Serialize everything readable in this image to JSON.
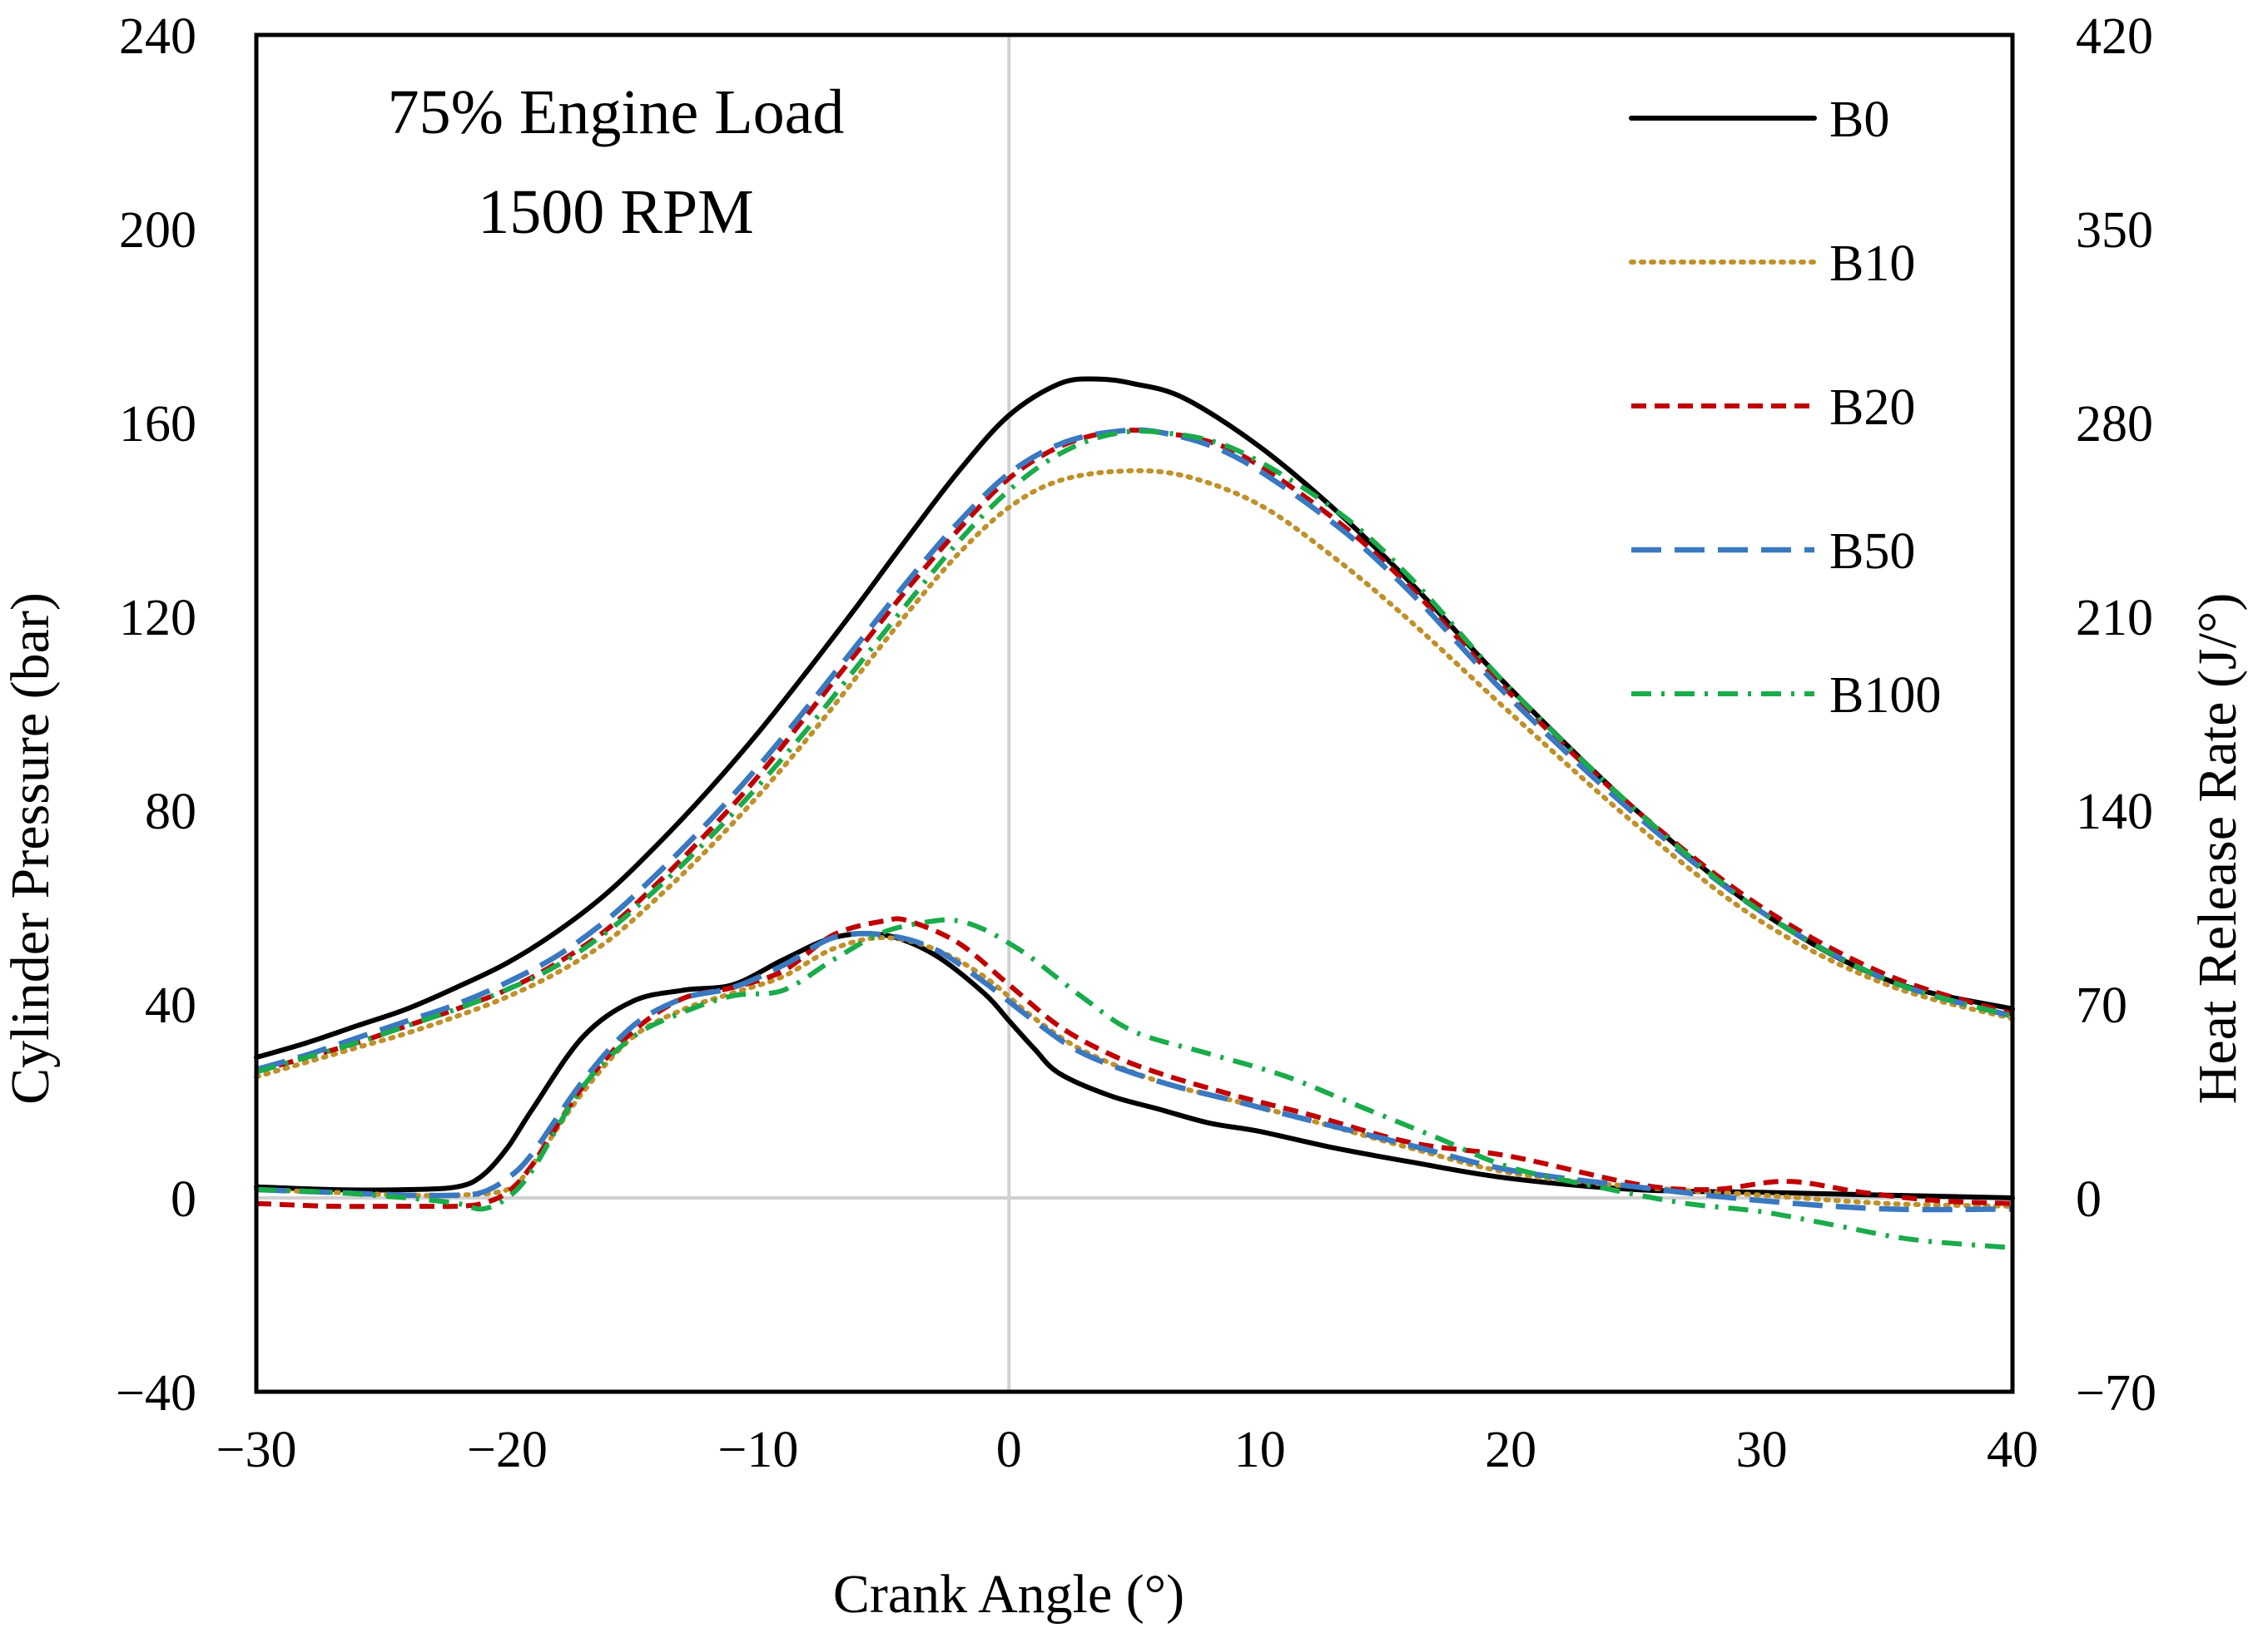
{
  "chart_data": {
    "type": "line",
    "title": "",
    "annotations": [
      "75% Engine Load",
      "1500 RPM"
    ],
    "xlabel": "Crank Angle (°)",
    "ylabel": "Cylinder Pressure (bar)",
    "y2label": "Heat Release Rate (J/°)",
    "xlim": [
      -30,
      40
    ],
    "ylim": [
      -40,
      240
    ],
    "y2lim": [
      -70,
      420
    ],
    "x_ticks": [
      -30,
      -20,
      -10,
      0,
      10,
      20,
      30,
      40
    ],
    "y_ticks": [
      -40,
      0,
      40,
      80,
      120,
      160,
      200,
      240
    ],
    "y2_ticks": [
      -70,
      0,
      70,
      140,
      210,
      280,
      350,
      420
    ],
    "x_tick_labels": [
      "−30",
      "−20",
      "−10",
      "0",
      "10",
      "20",
      "30",
      "40"
    ],
    "y_tick_labels": [
      "−40",
      "0",
      "40",
      "80",
      "120",
      "160",
      "200",
      "240"
    ],
    "y2_tick_labels": [
      "−70",
      "0",
      "70",
      "140",
      "210",
      "280",
      "350",
      "420"
    ],
    "reference_lines": {
      "x": 0,
      "y": 0
    },
    "legend_position": "top-right",
    "series": [
      {
        "name": "B0",
        "color": "#000000",
        "style": "solid",
        "pressure": {
          "x": [
            -30,
            -28,
            -26,
            -24,
            -22,
            -20,
            -18,
            -16,
            -14,
            -12,
            -10,
            -8,
            -6,
            -4,
            -2,
            0,
            2,
            3.5,
            5,
            7,
            10,
            13,
            16,
            20,
            25,
            30,
            35,
            40
          ],
          "y": [
            29,
            32,
            35.5,
            39,
            43.5,
            48.5,
            55,
            63,
            73,
            84,
            96,
            109,
            122.5,
            136.5,
            150,
            161.5,
            168,
            169,
            168,
            165,
            155,
            142,
            127,
            105,
            80,
            59,
            45,
            39
          ]
        },
        "hrr": {
          "x": [
            -30,
            -27,
            -24,
            -22,
            -21,
            -20,
            -19,
            -17,
            -15,
            -13,
            -11,
            -9,
            -7,
            -5,
            -3,
            -1,
            0,
            1,
            2,
            4,
            6,
            8,
            10,
            13,
            16,
            20,
            25,
            30,
            35,
            40
          ],
          "y": [
            4,
            3,
            3,
            4,
            8,
            18,
            32,
            58,
            71,
            75,
            77,
            86,
            94,
            95,
            88,
            74,
            64,
            54,
            45,
            37,
            32,
            27,
            24,
            18,
            13,
            7,
            3,
            2,
            1,
            0
          ]
        }
      },
      {
        "name": "B10",
        "color": "#c0902a",
        "style": "dotted",
        "pressure": {
          "x": [
            -30,
            -28,
            -26,
            -24,
            -22,
            -20,
            -18,
            -16,
            -14,
            -12,
            -10,
            -8,
            -6,
            -4,
            -2,
            0,
            2,
            4.5,
            7,
            10,
            13,
            16,
            20,
            25,
            30,
            35,
            40
          ],
          "y": [
            25,
            28,
            31,
            34,
            37.5,
            41.5,
            46.5,
            53,
            62,
            72,
            83,
            95,
            108,
            121,
            133,
            142.5,
            148,
            150,
            149,
            143,
            132,
            119,
            100,
            77,
            57,
            44,
            37
          ]
        },
        "hrr": {
          "x": [
            -30,
            -27,
            -24,
            -22,
            -20,
            -19,
            -17,
            -15,
            -13,
            -11,
            -9,
            -7,
            -5,
            -3,
            -1,
            1,
            3,
            6,
            9,
            12,
            16,
            20,
            25,
            30,
            35,
            40
          ],
          "y": [
            3,
            2,
            1,
            1,
            3,
            12,
            38,
            58,
            68,
            74,
            80,
            90,
            94,
            90,
            80,
            65,
            53,
            42,
            35,
            28,
            18,
            9,
            4,
            1,
            -2,
            -3
          ]
        }
      },
      {
        "name": "B20",
        "color": "#c00000",
        "style": "dashed",
        "pressure": {
          "x": [
            -30,
            -28,
            -26,
            -24,
            -22,
            -20,
            -18,
            -16,
            -14,
            -12,
            -10,
            -8,
            -6,
            -4,
            -2,
            0,
            2,
            4,
            6,
            9,
            13,
            16,
            20,
            25,
            30,
            35,
            40
          ],
          "y": [
            26,
            29,
            32,
            35.5,
            39,
            43,
            48.5,
            55.5,
            65,
            75.5,
            87,
            100,
            113,
            126,
            138,
            148.5,
            155,
            158,
            158,
            154,
            140,
            126,
            104,
            80,
            60,
            46,
            38
          ]
        },
        "hrr": {
          "x": [
            -30,
            -27,
            -24,
            -22,
            -21,
            -20,
            -19,
            -17,
            -15,
            -13,
            -11,
            -9,
            -7,
            -5,
            -4,
            -2,
            0,
            2,
            4,
            6,
            9,
            12,
            16,
            20,
            25,
            28,
            31,
            34,
            37,
            40
          ],
          "y": [
            -2,
            -3,
            -3,
            -3,
            -2,
            2,
            12,
            40,
            60,
            72,
            76,
            82,
            95,
            100,
            100,
            92,
            77,
            62,
            52,
            45,
            37,
            30,
            20,
            15,
            5,
            3,
            6,
            2,
            -1,
            -2
          ]
        }
      },
      {
        "name": "B50",
        "color": "#3a78c0",
        "style": "longdash",
        "pressure": {
          "x": [
            -30,
            -28,
            -26,
            -24,
            -22,
            -20,
            -18,
            -16,
            -14,
            -12,
            -10,
            -8,
            -6,
            -4,
            -2,
            0,
            2,
            4,
            6,
            9,
            13,
            16,
            20,
            25,
            30,
            35,
            40
          ],
          "y": [
            26.5,
            29.5,
            33,
            36.5,
            40,
            44.5,
            50,
            57.5,
            67,
            77.5,
            89,
            101.5,
            114.5,
            127.5,
            139.5,
            149.5,
            155.5,
            158,
            158,
            153,
            139,
            125,
            103,
            79,
            59,
            45,
            37.5
          ]
        },
        "hrr": {
          "x": [
            -30,
            -27,
            -24,
            -22,
            -21,
            -20,
            -19,
            -17,
            -15,
            -13,
            -11,
            -9,
            -7,
            -5,
            -3,
            -1,
            1,
            3,
            6,
            9,
            12,
            16,
            20,
            25,
            30,
            35,
            40
          ],
          "y": [
            3,
            2,
            1,
            1,
            2,
            7,
            16,
            42,
            62,
            72,
            76,
            84,
            94,
            95,
            90,
            78,
            64,
            52,
            42,
            35,
            28,
            19,
            10,
            4,
            -1,
            -4,
            -4
          ]
        }
      },
      {
        "name": "B100",
        "color": "#1aab4a",
        "style": "dashdot",
        "pressure": {
          "x": [
            -30,
            -28,
            -26,
            -24,
            -22,
            -20,
            -18,
            -16,
            -14,
            -12,
            -10,
            -8,
            -6,
            -4,
            -2,
            0,
            2,
            4,
            6,
            9,
            13,
            16,
            20,
            25,
            30,
            35,
            40
          ],
          "y": [
            26,
            29,
            32,
            35.5,
            39,
            43,
            48,
            55,
            64,
            74,
            85,
            97,
            110,
            123,
            135.5,
            146,
            153.5,
            157.5,
            158,
            154.5,
            142,
            128,
            105,
            80,
            59,
            45,
            37.5
          ]
        },
        "hrr": {
          "x": [
            -30,
            -27,
            -24,
            -22,
            -21,
            -20,
            -19,
            -17,
            -15,
            -13,
            -11,
            -9,
            -7,
            -5,
            -3,
            -2,
            -1,
            0,
            1,
            3,
            5,
            8,
            11,
            14,
            17,
            20,
            24,
            27,
            30,
            33,
            36,
            40
          ],
          "y": [
            3,
            2,
            0,
            -2,
            -4,
            0,
            10,
            40,
            58,
            67,
            73,
            75,
            86,
            96,
            100,
            100,
            97,
            92,
            86,
            72,
            60,
            52,
            44,
            33,
            22,
            11,
            3,
            -2,
            -5,
            -10,
            -15,
            -18
          ]
        }
      }
    ]
  }
}
